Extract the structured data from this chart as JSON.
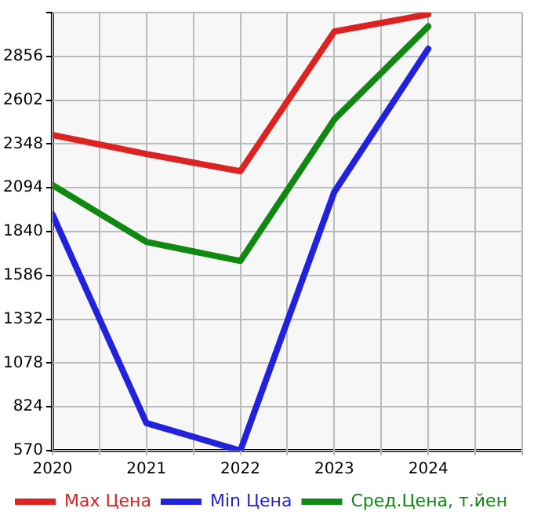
{
  "chart_data": {
    "type": "line",
    "x": [
      2020,
      2021,
      2022,
      2023,
      2024
    ],
    "series": [
      {
        "name": "Max Цена",
        "color": "#dd2222",
        "values": [
          2400,
          2290,
          2190,
          3000,
          3100
        ]
      },
      {
        "name": "Min Цена",
        "color": "#2222dd",
        "values": [
          1940,
          730,
          570,
          2070,
          2900
        ]
      },
      {
        "name": "Сред.Цена, т.йен",
        "color": "#118811",
        "values": [
          2110,
          1780,
          1670,
          2490,
          3030
        ]
      }
    ],
    "xlim": [
      2020,
      2025
    ],
    "xticks": [
      2020,
      {
        "value": 2020.5,
        "label": null
      },
      2021,
      {
        "value": 2021.5,
        "label": null
      },
      2022,
      {
        "value": 2022.5,
        "label": null
      },
      2023,
      {
        "value": 2023.5,
        "label": null
      },
      2024,
      {
        "value": 2024.5,
        "label": null
      },
      {
        "value": 2025,
        "label": null
      }
    ],
    "ylim": [
      570,
      3110
    ],
    "yticks": [
      570,
      824,
      1078,
      1332,
      1586,
      1840,
      2094,
      2348,
      2602,
      2856,
      {
        "value": 3110,
        "label": null
      }
    ],
    "grid": true,
    "legend": "bottom",
    "marker": "none",
    "line_style": "solid"
  }
}
